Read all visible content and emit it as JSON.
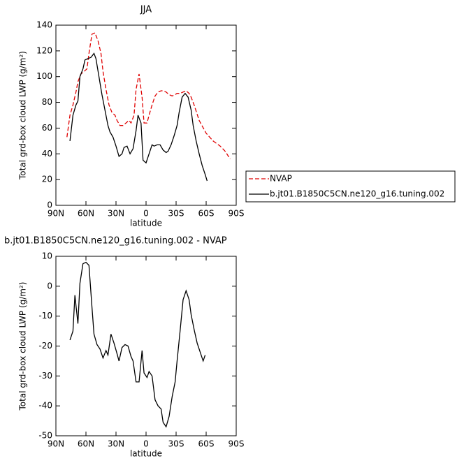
{
  "chart_data": [
    {
      "type": "line",
      "title": "JJA",
      "xlabel": "latitude",
      "ylabel": "Total grd-box cloud LWP (g/m²)",
      "xlim": [
        90,
        -90
      ],
      "xticks": [
        {
          "value": 90,
          "label": "90N"
        },
        {
          "value": 60,
          "label": "60N"
        },
        {
          "value": 30,
          "label": "30N"
        },
        0,
        {
          "value": -30,
          "label": "30S"
        },
        {
          "value": -60,
          "label": "60S"
        },
        {
          "value": -90,
          "label": "90S"
        }
      ],
      "ylim": [
        0,
        140
      ],
      "yticks": [
        0,
        20,
        40,
        60,
        80,
        100,
        120,
        140
      ],
      "series": [
        {
          "name": "NVAP",
          "color": "#e00000",
          "dash": "dashed",
          "x": [
            79,
            76,
            73,
            70,
            68,
            65,
            62,
            59,
            57,
            54,
            51,
            48,
            45,
            43,
            40,
            37,
            34,
            31,
            29,
            26,
            23,
            20,
            17,
            15,
            12,
            10,
            7,
            4,
            2,
            -1,
            -3,
            -6,
            -9,
            -12,
            -15,
            -17,
            -20,
            -23,
            -26,
            -29,
            -31,
            -34,
            -37,
            -40,
            -43,
            -45,
            -48,
            -53,
            -60,
            -67,
            -74,
            -79,
            -84
          ],
          "values": [
            53,
            70,
            78,
            88,
            96,
            102,
            104,
            106,
            118,
            133,
            134,
            128,
            118,
            104,
            90,
            78,
            72,
            70,
            66,
            62,
            62,
            64,
            66,
            64,
            70,
            90,
            102,
            84,
            64,
            64,
            70,
            78,
            85,
            88,
            89,
            89,
            88,
            86,
            85,
            86,
            87,
            87,
            88,
            89,
            87,
            84,
            78,
            66,
            56,
            50,
            46,
            42,
            36
          ]
        },
        {
          "name": "b.jt01.B1850C5CN.ne120_g16.tuning.002",
          "color": "#000000",
          "dash": "solid",
          "x": [
            76,
            73,
            70,
            68,
            66,
            63,
            61,
            58,
            55,
            52,
            50,
            47,
            44,
            41,
            38,
            36,
            33,
            30,
            27,
            24,
            22,
            19,
            16,
            13,
            10,
            8,
            5,
            3,
            0,
            -3,
            -6,
            -8,
            -11,
            -14,
            -17,
            -20,
            -22,
            -25,
            -28,
            -31,
            -33,
            -36,
            -39,
            -42,
            -45,
            -47,
            -50,
            -53,
            -56,
            -59,
            -61
          ],
          "values": [
            50,
            70,
            78,
            81,
            100,
            106,
            113,
            114,
            115,
            118,
            114,
            100,
            86,
            74,
            62,
            57,
            53,
            46,
            38,
            40,
            45,
            46,
            40,
            44,
            58,
            70,
            64,
            35,
            33,
            40,
            47,
            46,
            47,
            47,
            43,
            41,
            42,
            47,
            54,
            62,
            72,
            84,
            87,
            84,
            74,
            62,
            50,
            40,
            31,
            24,
            19
          ]
        }
      ]
    },
    {
      "type": "line",
      "title": "b.jt01.B1850C5CN.ne120_g16.tuning.002 - NVAP",
      "xlabel": "latitude",
      "ylabel": "Total grd-box cloud LWP (g/m²)",
      "xlim": [
        90,
        -90
      ],
      "xticks": [
        {
          "value": 90,
          "label": "90N"
        },
        {
          "value": 60,
          "label": "60N"
        },
        {
          "value": 30,
          "label": "30N"
        },
        0,
        {
          "value": -30,
          "label": "30S"
        },
        {
          "value": -60,
          "label": "60S"
        },
        {
          "value": -90,
          "label": "90S"
        }
      ],
      "ylim": [
        -50,
        10
      ],
      "yticks": [
        -50,
        -40,
        -30,
        -20,
        -10,
        0,
        10
      ],
      "series": [
        {
          "color": "#000000",
          "dash": "solid",
          "x": [
            76,
            73,
            71,
            68,
            66,
            63,
            60,
            57,
            54,
            52,
            49,
            46,
            43,
            40,
            38,
            35,
            32,
            29,
            27,
            24,
            21,
            18,
            15,
            13,
            10,
            7,
            4,
            2,
            -1,
            -3,
            -6,
            -9,
            -12,
            -15,
            -17,
            -20,
            -23,
            -26,
            -29,
            -31,
            -34,
            -37,
            -40,
            -43,
            -45,
            -48,
            -51,
            -54,
            -57,
            -59
          ],
          "values": [
            -18,
            -15,
            -3,
            -12.5,
            1,
            7.5,
            8,
            7,
            -7,
            -16,
            -19.5,
            -21,
            -24,
            -21.5,
            -23,
            -16,
            -19,
            -22.5,
            -25,
            -20.5,
            -19.5,
            -20,
            -23.5,
            -25,
            -32,
            -32,
            -21.5,
            -29,
            -30.5,
            -28.5,
            -30,
            -38,
            -40,
            -41,
            -45.5,
            -47,
            -43.5,
            -37,
            -32,
            -25,
            -15,
            -4.5,
            -1.5,
            -4.5,
            -9.5,
            -14.5,
            -19,
            -22,
            -25,
            -23
          ]
        }
      ]
    }
  ]
}
